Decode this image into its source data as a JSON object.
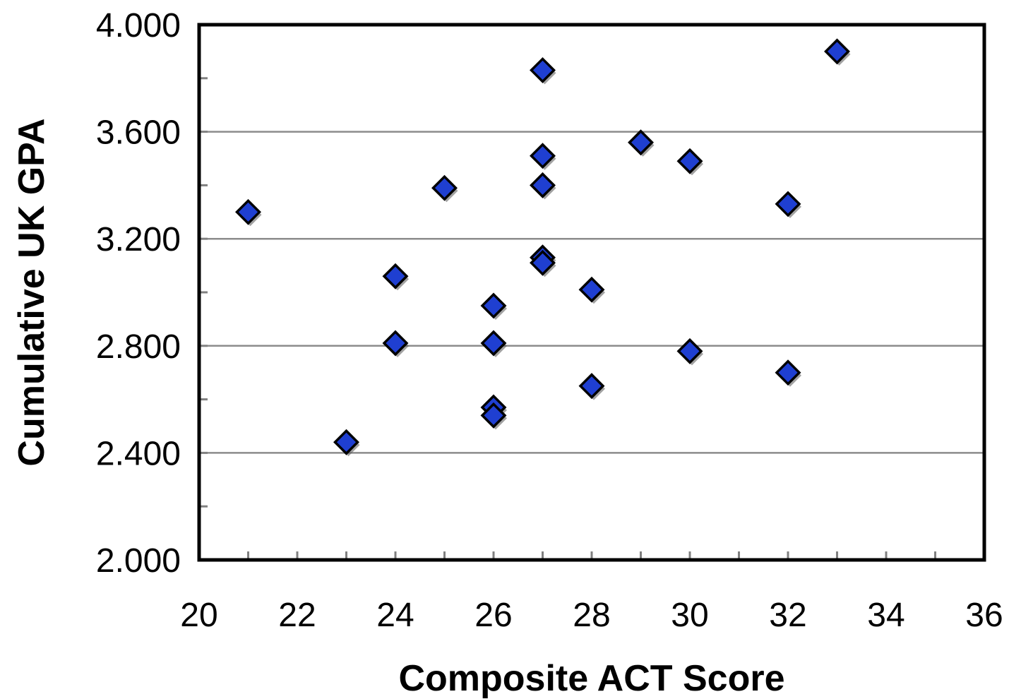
{
  "chart_data": {
    "type": "scatter",
    "title": "",
    "xlabel": "Composite ACT Score",
    "ylabel": "Cumulative UK GPA",
    "xlim": [
      20,
      36
    ],
    "ylim": [
      2.0,
      4.0
    ],
    "x_major_ticks": [
      20,
      22,
      24,
      26,
      28,
      30,
      32,
      34,
      36
    ],
    "x_tick_labels": [
      "20",
      "22",
      "24",
      "26",
      "28",
      "30",
      "32",
      "34",
      "36"
    ],
    "x_minor_ticks": [
      21,
      23,
      25,
      27,
      29,
      31,
      33,
      35
    ],
    "y_major_ticks": [
      2.0,
      2.4,
      2.8,
      3.2,
      3.6,
      4.0
    ],
    "y_tick_labels": [
      "2.000",
      "2.400",
      "2.800",
      "3.200",
      "3.600",
      "4.000"
    ],
    "y_minor_ticks": [
      2.2,
      2.6,
      3.0,
      3.4,
      3.8
    ],
    "y_gridlines": [
      2.4,
      2.8,
      3.2,
      3.6
    ],
    "grid": "horizontal",
    "legend": "none",
    "marker": "diamond",
    "marker_color": "#1f3fd1",
    "marker_edge_color": "#000000",
    "series": [
      {
        "points": [
          {
            "x": 21,
            "y": 3.3
          },
          {
            "x": 23,
            "y": 2.44
          },
          {
            "x": 24,
            "y": 3.06
          },
          {
            "x": 24,
            "y": 2.81
          },
          {
            "x": 25,
            "y": 3.39
          },
          {
            "x": 26,
            "y": 2.95
          },
          {
            "x": 26,
            "y": 2.81
          },
          {
            "x": 26,
            "y": 2.57
          },
          {
            "x": 26,
            "y": 2.54
          },
          {
            "x": 27,
            "y": 3.83
          },
          {
            "x": 27,
            "y": 3.51
          },
          {
            "x": 27,
            "y": 3.4
          },
          {
            "x": 27,
            "y": 3.13
          },
          {
            "x": 27,
            "y": 3.11
          },
          {
            "x": 28,
            "y": 3.01
          },
          {
            "x": 28,
            "y": 2.65
          },
          {
            "x": 29,
            "y": 3.56
          },
          {
            "x": 30,
            "y": 3.49
          },
          {
            "x": 30,
            "y": 2.78
          },
          {
            "x": 32,
            "y": 3.33
          },
          {
            "x": 32,
            "y": 2.7
          },
          {
            "x": 33,
            "y": 3.9
          }
        ]
      }
    ]
  }
}
